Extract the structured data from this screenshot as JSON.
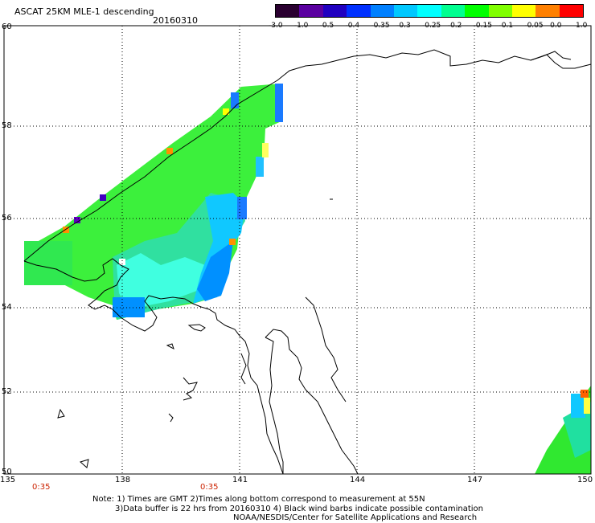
{
  "title": "ASCAT 25KM MLE-1 descending",
  "date": "20160310",
  "colorbar": {
    "labels": [
      "-3.0",
      "-1.0",
      "-0.5",
      "-0.4",
      "-0.35",
      "-0.3",
      "-0.25",
      "-0.2",
      "-0.15",
      "-0.1",
      "-0.05",
      "0.0",
      "1.0"
    ],
    "colors": [
      "#2a0030",
      "#5a00a0",
      "#2000c0",
      "#0030ff",
      "#0080ff",
      "#00c8ff",
      "#00ffff",
      "#00ff90",
      "#00ff00",
      "#80ff00",
      "#ffff00",
      "#ff8000",
      "#ff0000"
    ]
  },
  "axes": {
    "lat_labels": [
      "60",
      "58",
      "56",
      "54",
      "52",
      "50"
    ],
    "lon_labels": [
      "135",
      "138",
      "141",
      "144",
      "147",
      "150"
    ]
  },
  "times": [
    "0:35",
    "0:35"
  ],
  "notes": {
    "line1": "Note: 1) Times are GMT 2)Times along bottom correspond to measurement at 55N",
    "line2": "3)Data buffer is 22 hrs from 20160310 4) Black wind barbs indicate possible contamination",
    "line3": "NOAA/NESDIS/Center for Satellite Applications and Research"
  }
}
